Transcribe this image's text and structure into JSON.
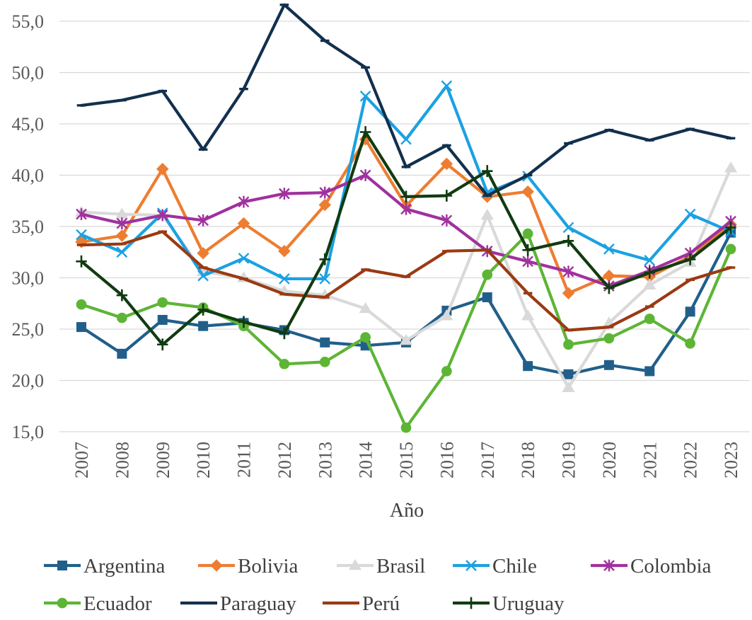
{
  "chart_data": {
    "type": "line",
    "title": "",
    "xlabel": "Año",
    "ylabel": "",
    "ylim": [
      15,
      56
    ],
    "y_ticks": [
      "15,0",
      "20,0",
      "25,0",
      "30,0",
      "35,0",
      "40,0",
      "45,0",
      "50,0",
      "55,0"
    ],
    "y_tick_values": [
      15,
      20,
      25,
      30,
      35,
      40,
      45,
      50,
      55
    ],
    "categories": [
      "2007",
      "2008",
      "2009",
      "2010",
      "2011",
      "2012",
      "2013",
      "2014",
      "2015",
      "2016",
      "2017",
      "2018",
      "2019",
      "2020",
      "2021",
      "2022",
      "2023"
    ],
    "grid": "horizontal",
    "legend_position": "bottom",
    "series": [
      {
        "name": "Argentina",
        "color": "#215f8a",
        "marker": "square",
        "values": [
          25.2,
          22.6,
          25.9,
          25.3,
          25.6,
          24.9,
          23.7,
          23.4,
          23.7,
          26.8,
          28.1,
          21.4,
          20.6,
          21.5,
          20.9,
          26.7,
          34.4
        ]
      },
      {
        "name": "Bolivia",
        "color": "#ed7d31",
        "marker": "diamond",
        "values": [
          33.5,
          34.1,
          40.6,
          32.4,
          35.3,
          32.6,
          37.1,
          43.5,
          37.0,
          41.1,
          37.9,
          38.4,
          28.5,
          30.2,
          30.1,
          32.1,
          35.2
        ]
      },
      {
        "name": "Brasil",
        "color": "#d9d9d9",
        "marker": "triangle",
        "values": [
          36.4,
          36.2,
          36.1,
          30.6,
          30.0,
          28.7,
          28.3,
          27.0,
          23.9,
          26.3,
          36.1,
          26.3,
          19.3,
          25.6,
          29.3,
          31.5,
          40.7
        ]
      },
      {
        "name": "Chile",
        "color": "#1ba1e2",
        "marker": "x",
        "values": [
          34.2,
          32.5,
          36.3,
          30.2,
          31.9,
          29.9,
          29.9,
          47.7,
          43.5,
          48.7,
          38.3,
          39.9,
          34.9,
          32.8,
          31.7,
          36.2,
          34.5
        ]
      },
      {
        "name": "Colombia",
        "color": "#a0319e",
        "marker": "star",
        "values": [
          36.2,
          35.3,
          36.1,
          35.6,
          37.4,
          38.2,
          38.3,
          40.0,
          36.7,
          35.6,
          32.6,
          31.6,
          30.6,
          29.2,
          30.7,
          32.4,
          35.5
        ]
      },
      {
        "name": "Ecuador",
        "color": "#5db535",
        "marker": "circle",
        "values": [
          27.4,
          26.1,
          27.6,
          27.1,
          25.3,
          21.6,
          21.8,
          24.2,
          15.4,
          20.9,
          30.3,
          34.3,
          23.5,
          24.1,
          26.0,
          23.6,
          32.8
        ]
      },
      {
        "name": "Paraguay",
        "color": "#12304e",
        "marker": "dash",
        "values": [
          46.8,
          47.3,
          48.2,
          42.5,
          48.4,
          56.6,
          53.1,
          50.5,
          40.8,
          42.9,
          38.0,
          40.0,
          43.1,
          44.4,
          43.4,
          44.5,
          43.6
        ]
      },
      {
        "name": "Perú",
        "color": "#9a3a12",
        "marker": "dash",
        "values": [
          33.2,
          33.3,
          34.5,
          31.0,
          29.9,
          28.4,
          28.1,
          30.8,
          30.1,
          32.6,
          32.7,
          28.5,
          24.9,
          25.2,
          27.2,
          29.8,
          31.0
        ]
      },
      {
        "name": "Uruguay",
        "color": "#113b11",
        "marker": "plus",
        "values": [
          31.6,
          28.3,
          23.5,
          26.9,
          25.7,
          24.6,
          31.8,
          44.2,
          37.9,
          38.0,
          40.4,
          32.7,
          33.6,
          29.0,
          30.5,
          31.8,
          34.9
        ]
      }
    ]
  }
}
